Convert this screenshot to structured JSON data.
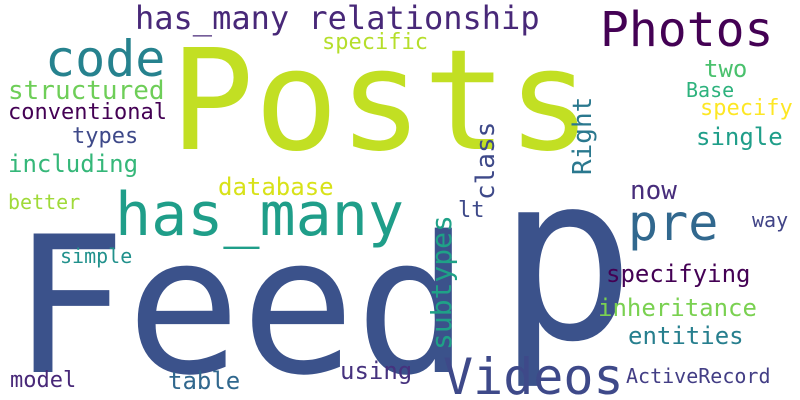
{
  "words": [
    {
      "text": "Posts",
      "color": "#c2df23"
    },
    {
      "text": "Feed",
      "color": "#3b528b"
    },
    {
      "text": "p",
      "color": "#3b528b"
    },
    {
      "text": "has_many",
      "color": "#1f9e89"
    },
    {
      "text": "Videos",
      "color": "#3e4989"
    },
    {
      "text": "Photos",
      "color": "#440154"
    },
    {
      "text": "code",
      "color": "#26828e"
    },
    {
      "text": "has_many relationship",
      "color": "#482878"
    },
    {
      "text": "pre",
      "color": "#31688e"
    },
    {
      "text": "specific",
      "color": "#b5de2b"
    },
    {
      "text": "structured",
      "color": "#6ece58"
    },
    {
      "text": "conventional",
      "color": "#440154"
    },
    {
      "text": "types",
      "color": "#3e4989"
    },
    {
      "text": "including",
      "color": "#35b779"
    },
    {
      "text": "better",
      "color": "#a0da39"
    },
    {
      "text": "database",
      "color": "#d8e219"
    },
    {
      "text": "simple",
      "color": "#21918c"
    },
    {
      "text": "model",
      "color": "#482878"
    },
    {
      "text": "table",
      "color": "#31688e"
    },
    {
      "text": "using",
      "color": "#46327e"
    },
    {
      "text": "class",
      "color": "#3e4989"
    },
    {
      "text": "Right",
      "color": "#2a788e"
    },
    {
      "text": "lt",
      "color": "#3e4989"
    },
    {
      "text": "subtypes",
      "color": "#1fa187"
    },
    {
      "text": "two",
      "color": "#4ac16d"
    },
    {
      "text": "Base",
      "color": "#2db27d"
    },
    {
      "text": "specify",
      "color": "#fde725"
    },
    {
      "text": "single",
      "color": "#1f9e89"
    },
    {
      "text": "now",
      "color": "#472d7b"
    },
    {
      "text": "way",
      "color": "#414487"
    },
    {
      "text": "specifying",
      "color": "#440154"
    },
    {
      "text": "inheritance",
      "color": "#7ad151"
    },
    {
      "text": "entities",
      "color": "#277f8e"
    },
    {
      "text": "ActiveRecord",
      "color": "#433e85"
    }
  ]
}
